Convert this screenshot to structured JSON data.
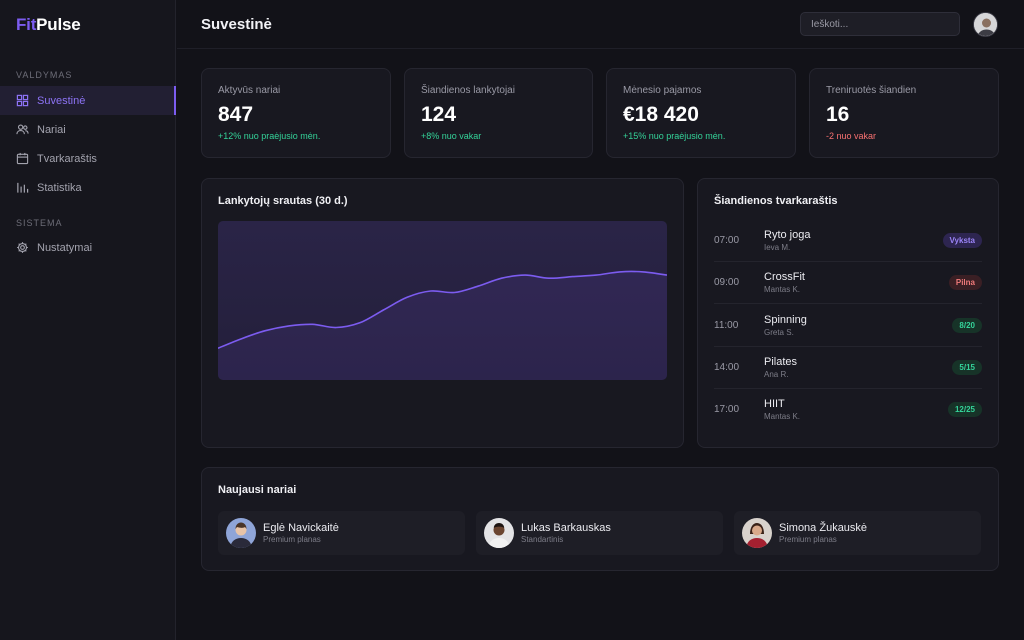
{
  "app": {
    "logo_accent": "Fit",
    "logo_rest": "Pulse"
  },
  "sidebar": {
    "section_main": "VALDYMAS",
    "section_system": "SISTEMA",
    "items": [
      {
        "label": "Suvestinė",
        "icon": "grid-icon",
        "active": true
      },
      {
        "label": "Nariai",
        "icon": "users-icon"
      },
      {
        "label": "Tvarkaraštis",
        "icon": "calendar-icon"
      },
      {
        "label": "Statistika",
        "icon": "bar-chart-icon"
      }
    ],
    "system_items": [
      {
        "label": "Nustatymai",
        "icon": "gear-icon"
      }
    ]
  },
  "header": {
    "title": "Suvestinė",
    "search_placeholder": "Ieškoti..."
  },
  "stats": [
    {
      "label": "Aktyvūs nariai",
      "value": "847",
      "change": "+12% nuo praėjusio mėn.",
      "trend": "up"
    },
    {
      "label": "Šiandienos lankytojai",
      "value": "124",
      "change": "+8% nuo vakar",
      "trend": "up"
    },
    {
      "label": "Mėnesio pajamos",
      "value": "€18 420",
      "change": "+15% nuo praėjusio mėn.",
      "trend": "up"
    },
    {
      "label": "Treniruotės šiandien",
      "value": "16",
      "change": "-2 nuo vakar",
      "trend": "down"
    }
  ],
  "traffic": {
    "title": "Lankytojų srautas (30 d.)"
  },
  "chart_data": {
    "type": "line",
    "series": [
      {
        "values": [
          20,
          26,
          31,
          34,
          35,
          33,
          36,
          44,
          52,
          56,
          55,
          59,
          64,
          66,
          64,
          65,
          66,
          68,
          68,
          66
        ]
      }
    ],
    "ylim": [
      0,
      100
    ],
    "color": "#7c5cf0"
  },
  "schedule": {
    "title": "Šiandienos tvarkaraštis",
    "rows": [
      {
        "time": "07:00",
        "name": "Ryto joga",
        "trainer": "Ieva M.",
        "badge": "Vyksta",
        "badge_type": "purple"
      },
      {
        "time": "09:00",
        "name": "CrossFit",
        "trainer": "Mantas K.",
        "badge": "Pilna",
        "badge_type": "red"
      },
      {
        "time": "11:00",
        "name": "Spinning",
        "trainer": "Greta S.",
        "badge": "8/20",
        "badge_type": "green"
      },
      {
        "time": "14:00",
        "name": "Pilates",
        "trainer": "Ana R.",
        "badge": "5/15",
        "badge_type": "green"
      },
      {
        "time": "17:00",
        "name": "HIIT",
        "trainer": "Mantas K.",
        "badge": "12/25",
        "badge_type": "green"
      }
    ]
  },
  "members": {
    "title": "Naujausi nariai",
    "items": [
      {
        "name": "Eglė Navickaitė",
        "plan": "Premium planas"
      },
      {
        "name": "Lukas Barkauskas",
        "plan": "Standartinis"
      },
      {
        "name": "Simona Žukauskė",
        "plan": "Premium planas"
      }
    ]
  },
  "colors": {
    "accent": "#7c5cf0",
    "positive": "#34d399",
    "negative": "#f87171",
    "background": "#121218"
  }
}
